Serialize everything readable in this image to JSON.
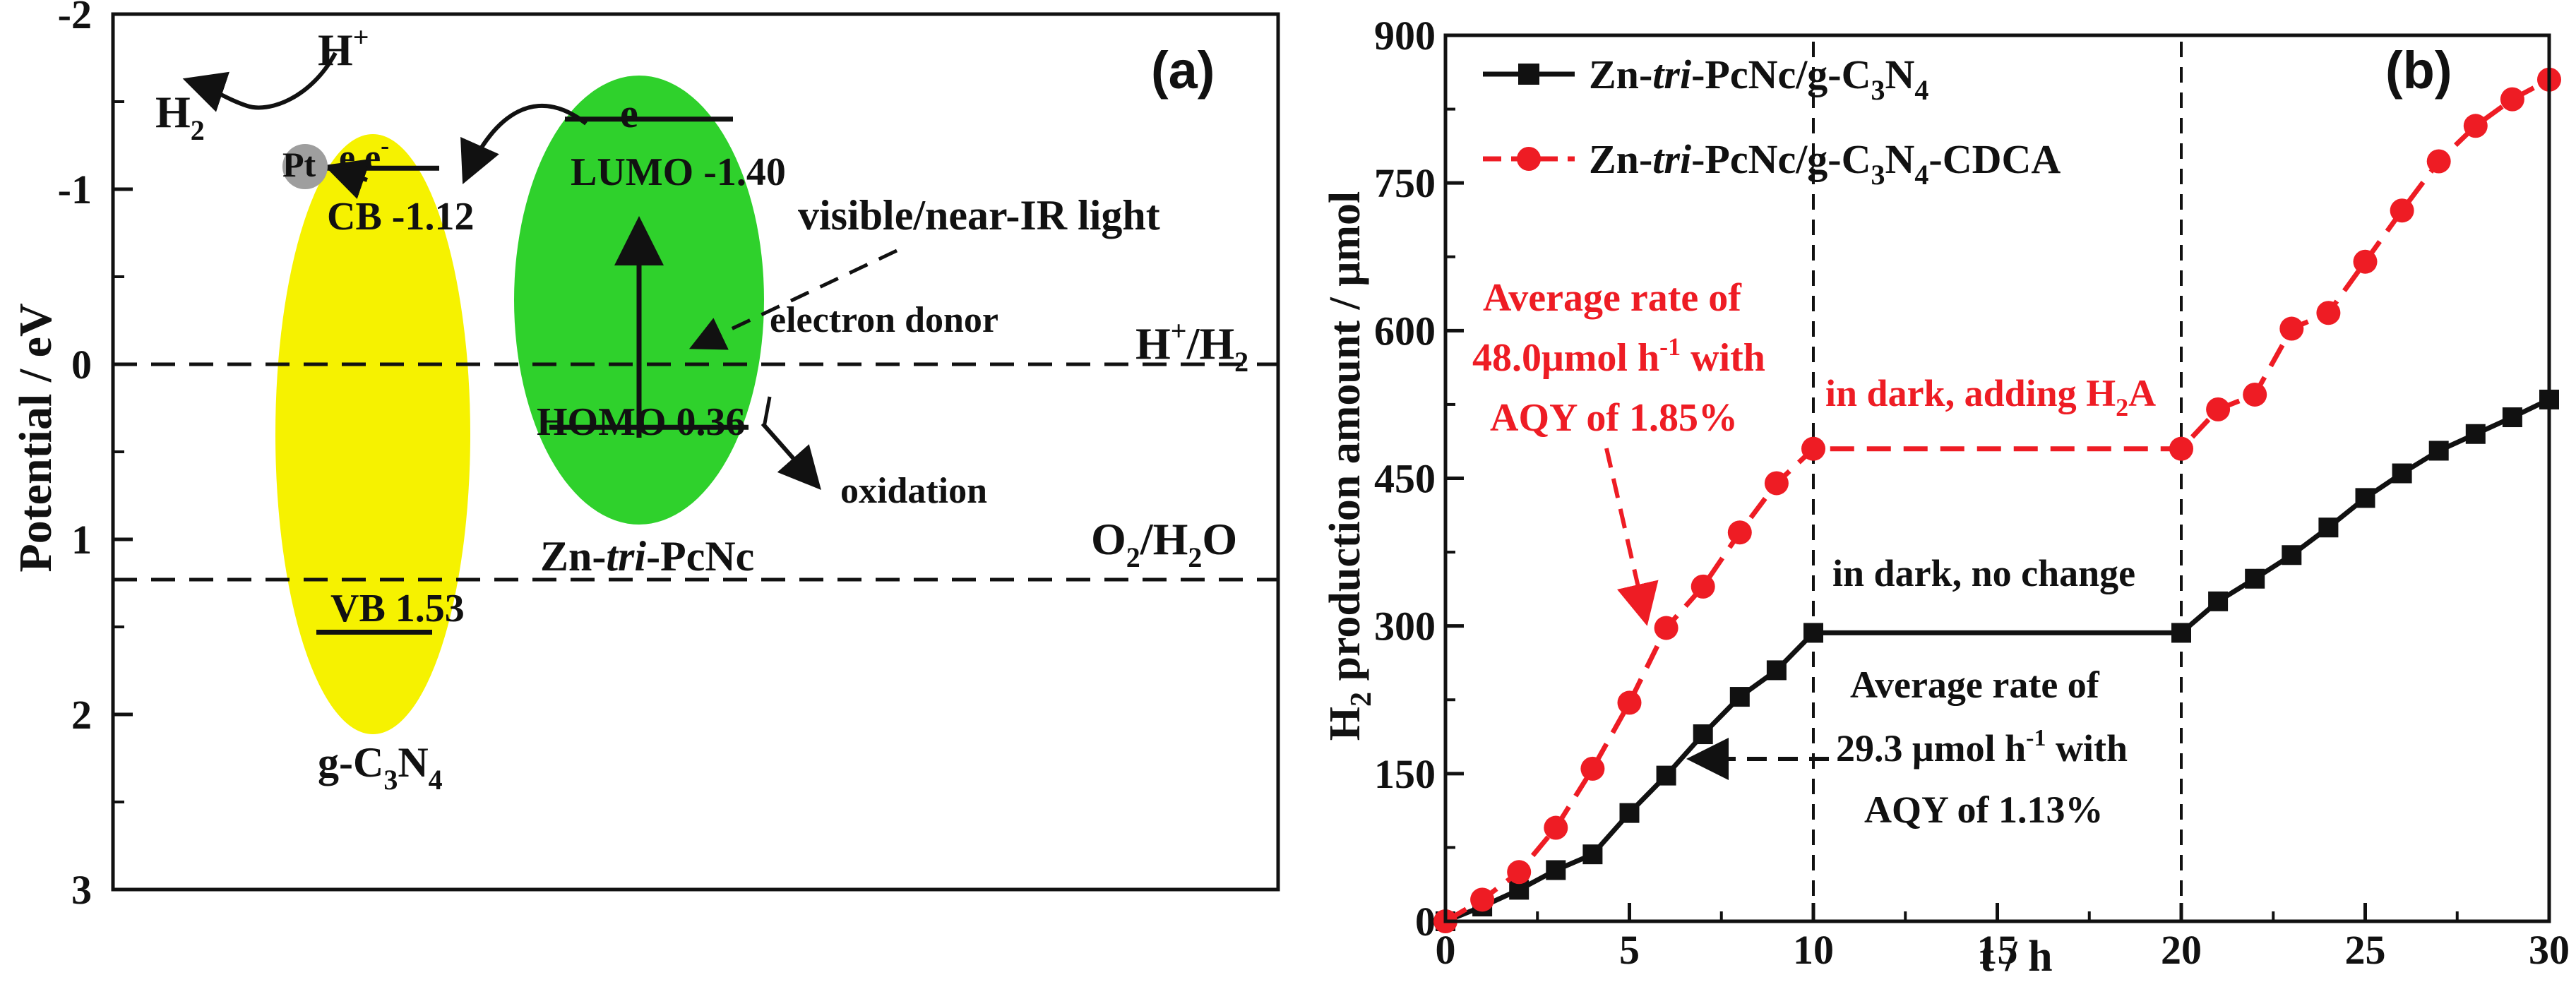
{
  "colors": {
    "yellow": "#f6f200",
    "green": "#2fd12c",
    "black": "#111111",
    "red": "#ee1c24",
    "pt": "#9e9e9e"
  },
  "panel_a": {
    "label": "(a)",
    "ylabel": "Potential / eV",
    "y_ticks": [
      "-2",
      "-1",
      "0",
      "1",
      "2",
      "3"
    ],
    "y_range": [
      -2,
      3
    ],
    "levels": {
      "cb": -1.12,
      "vb": 1.53,
      "lumo": -1.4,
      "homo": 0.36,
      "h_ref": 0.0,
      "o_ref": 1.23
    },
    "texts": {
      "hplus": "H",
      "hplus_sup": "+",
      "h2_main": "H",
      "h2_sub": "2",
      "pt": "Pt",
      "ee": "e e",
      "ee_sup": "-",
      "e_green": "e",
      "lumo": "LUMO -1.40",
      "cb": "CB -1.12",
      "light": "visible/near-IR light",
      "donor": "electron donor",
      "hh2_main": "H",
      "hh2_sup": "+",
      "hh2_mid": "/H",
      "hh2_sub": "2",
      "homo": "HOMO 0.36",
      "oxidation": "oxidation",
      "zn_pre": "Zn-",
      "zn_it": "tri",
      "zn_post": "-PcNc",
      "o2_main": "O",
      "o2_sub": "2",
      "o2_mid": "/H",
      "o2_sub2": "2",
      "o2_end": "O",
      "vb": "VB 1.53",
      "gcn_main": "g-C",
      "gcn_sub1": "3",
      "gcn_mid": "N",
      "gcn_sub2": "4"
    }
  },
  "panel_b": {
    "label": "(b)",
    "texts": {
      "legend1_pre": "Zn-",
      "legend1_it": "tri",
      "legend1_mid": "-PcNc/g-C",
      "legend1_sub1": "3",
      "legend1_n": "N",
      "legend1_sub2": "4",
      "legend2_pre": "Zn-",
      "legend2_it": "tri",
      "legend2_mid": "-PcNc/g-C",
      "legend2_sub1": "3",
      "legend2_n": "N",
      "legend2_sub2": "4",
      "legend2_end": "-CDCA",
      "red_ann1": "Average rate of",
      "red_ann2_main": "48.0μmol h",
      "red_ann2_sup": "-1",
      "red_ann2_end": " with",
      "red_ann3": "AQY of 1.85%",
      "dark_red_main": "in dark, adding H",
      "dark_red_sub": "2",
      "dark_red_end": "A",
      "dark_black": "in dark, no change",
      "black_ann1": "Average rate of",
      "black_ann2_main": "29.3 μmol h",
      "black_ann2_sup": "-1",
      "black_ann2_end": " with",
      "black_ann3": "AQY of 1.13%",
      "ylabel_h": "H",
      "ylabel_sub": "2",
      "ylabel_rest": " production amount / μmol"
    }
  },
  "chart_data": {
    "type": "line",
    "title": "",
    "xlabel": "t / h",
    "ylabel": "H2 production amount / μmol",
    "xlim": [
      0,
      30
    ],
    "ylim": [
      0,
      900
    ],
    "x_ticks": [
      0,
      5,
      10,
      15,
      20,
      25,
      30
    ],
    "y_ticks": [
      0,
      150,
      300,
      450,
      600,
      750,
      900
    ],
    "dashed_vlines": [
      10,
      20
    ],
    "legend_position": "top-left",
    "series": [
      {
        "name": "Zn-tri-PcNc/g-C3N4",
        "color": "#111111",
        "marker": "square",
        "linestyle": "solid",
        "points": [
          [
            0,
            0
          ],
          [
            1,
            15
          ],
          [
            2,
            32
          ],
          [
            3,
            52
          ],
          [
            4,
            68
          ],
          [
            5,
            110
          ],
          [
            6,
            148
          ],
          [
            7,
            190
          ],
          [
            8,
            228
          ],
          [
            9,
            255
          ],
          [
            10,
            293
          ],
          [
            20,
            293
          ],
          [
            21,
            325
          ],
          [
            22,
            348
          ],
          [
            23,
            372
          ],
          [
            24,
            400
          ],
          [
            25,
            430
          ],
          [
            26,
            455
          ],
          [
            27,
            478
          ],
          [
            28,
            495
          ],
          [
            29,
            512
          ],
          [
            30,
            530
          ]
        ]
      },
      {
        "name": "Zn-tri-PcNc/g-C3N4-CDCA",
        "color": "#ee1c24",
        "marker": "circle",
        "linestyle": "dashed",
        "points": [
          [
            0,
            0
          ],
          [
            1,
            22
          ],
          [
            2,
            50
          ],
          [
            3,
            95
          ],
          [
            4,
            155
          ],
          [
            5,
            222
          ],
          [
            6,
            298
          ],
          [
            7,
            340
          ],
          [
            8,
            395
          ],
          [
            9,
            445
          ],
          [
            10,
            480
          ],
          [
            20,
            480
          ],
          [
            21,
            520
          ],
          [
            22,
            535
          ],
          [
            23,
            602
          ],
          [
            24,
            618
          ],
          [
            25,
            670
          ],
          [
            26,
            722
          ],
          [
            27,
            772
          ],
          [
            28,
            808
          ],
          [
            29,
            835
          ],
          [
            30,
            855
          ]
        ]
      }
    ]
  }
}
